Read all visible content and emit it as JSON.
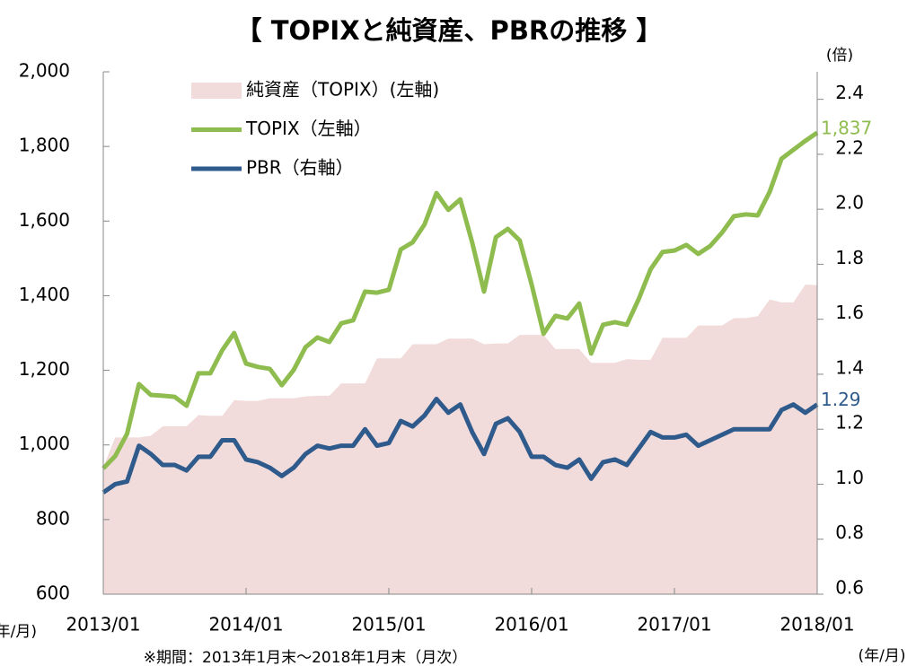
{
  "chart_data": {
    "type": "line",
    "title": "【 TOPIXと純資産、PBRの推移 】",
    "note": "※期間：2013年1月末～2018年1月末（月次）",
    "y2_unit_label": "(倍)",
    "x_unit_label_left": "(年/月)",
    "x_unit_label_right": "(年/月)",
    "categories": [
      "2013/01",
      null,
      null,
      null,
      null,
      null,
      null,
      null,
      null,
      null,
      null,
      null,
      "2014/01",
      null,
      null,
      null,
      null,
      null,
      null,
      null,
      null,
      null,
      null,
      null,
      "2015/01",
      null,
      null,
      null,
      null,
      null,
      null,
      null,
      null,
      null,
      null,
      null,
      "2016/01",
      null,
      null,
      null,
      null,
      null,
      null,
      null,
      null,
      null,
      null,
      null,
      "2017/01",
      null,
      null,
      null,
      null,
      null,
      null,
      null,
      null,
      null,
      null,
      null,
      "2018/01"
    ],
    "ylim": [
      600,
      2000
    ],
    "yticks": [
      600,
      800,
      {
        "value": 1000,
        "label": "1,000"
      },
      {
        "value": 1200,
        "label": "1,200"
      },
      {
        "value": 1400,
        "label": "1,400"
      },
      {
        "value": 1600,
        "label": "1,600"
      },
      {
        "value": 1800,
        "label": "1,800"
      },
      {
        "value": 2000,
        "label": "2,000"
      }
    ],
    "y2lim": [
      0.6,
      2.5
    ],
    "y2ticks": [
      0.6,
      0.8,
      {
        "value": 1,
        "label": "1.0"
      },
      1.2,
      1.4,
      1.6,
      1.8,
      {
        "value": 2,
        "label": "2.0"
      },
      2.2,
      2.4
    ],
    "series": [
      {
        "name": "純資産（TOPIX）(左軸)",
        "style": "area",
        "color": "#f2dcdb",
        "values": [
          940,
          1020,
          1020,
          1020,
          1025,
          1050,
          1050,
          1050,
          1080,
          1078,
          1078,
          1120,
          1118,
          1118,
          1125,
          1125,
          1125,
          1130,
          1132,
          1132,
          1165,
          1165,
          1165,
          1232,
          1232,
          1232,
          1270,
          1270,
          1270,
          1285,
          1285,
          1285,
          1270,
          1272,
          1272,
          1295,
          1295,
          1295,
          1257,
          1257,
          1257,
          1220,
          1220,
          1220,
          1230,
          1228,
          1228,
          1287,
          1287,
          1287,
          1320,
          1320,
          1320,
          1340,
          1340,
          1345,
          1390,
          1382,
          1382,
          1430,
          1428
        ]
      },
      {
        "name": "TOPIX（左軸）",
        "style": "line",
        "color": "#8fbc4f",
        "values": [
          937,
          970,
          1030,
          1163,
          1134,
          1132,
          1129,
          1105,
          1192,
          1192,
          1254,
          1300,
          1218,
          1209,
          1204,
          1160,
          1201,
          1262,
          1288,
          1276,
          1326,
          1334,
          1411,
          1408,
          1416,
          1524,
          1543,
          1591,
          1675,
          1630,
          1658,
          1543,
          1411,
          1557,
          1579,
          1548,
          1430,
          1298,
          1346,
          1339,
          1379,
          1245,
          1322,
          1329,
          1322,
          1391,
          1471,
          1517,
          1521,
          1536,
          1512,
          1533,
          1569,
          1613,
          1618,
          1615,
          1678,
          1767,
          1791,
          1815,
          1837
        ],
        "value_labels": [
          null,
          null,
          null,
          null,
          null,
          null,
          null,
          null,
          null,
          null,
          null,
          null,
          null,
          null,
          null,
          null,
          null,
          null,
          null,
          null,
          null,
          null,
          null,
          null,
          null,
          null,
          null,
          null,
          null,
          null,
          null,
          null,
          null,
          null,
          null,
          null,
          null,
          null,
          null,
          null,
          null,
          null,
          null,
          null,
          null,
          null,
          null,
          null,
          null,
          null,
          null,
          null,
          null,
          null,
          null,
          null,
          null,
          null,
          null,
          null,
          "1,837"
        ]
      },
      {
        "name": "PBR（右軸）",
        "style": "line",
        "axis": "y2",
        "color": "#2f5a8c",
        "values": [
          0.97,
          1.0,
          1.01,
          1.14,
          1.11,
          1.07,
          1.07,
          1.05,
          1.1,
          1.1,
          1.16,
          1.16,
          1.09,
          1.08,
          1.06,
          1.03,
          1.06,
          1.11,
          1.14,
          1.13,
          1.14,
          1.14,
          1.2,
          1.14,
          1.15,
          1.23,
          1.21,
          1.25,
          1.31,
          1.26,
          1.29,
          1.19,
          1.11,
          1.22,
          1.24,
          1.19,
          1.1,
          1.1,
          1.07,
          1.06,
          1.09,
          1.02,
          1.08,
          1.09,
          1.07,
          1.13,
          1.19,
          1.17,
          1.17,
          1.18,
          1.14,
          1.16,
          1.18,
          1.2,
          1.2,
          1.2,
          1.2,
          1.27,
          1.29,
          1.26,
          1.29
        ],
        "value_labels": [
          null,
          null,
          null,
          null,
          null,
          null,
          null,
          null,
          null,
          null,
          null,
          null,
          null,
          null,
          null,
          null,
          null,
          null,
          null,
          null,
          null,
          null,
          null,
          null,
          null,
          null,
          null,
          null,
          null,
          null,
          null,
          null,
          null,
          null,
          null,
          null,
          null,
          null,
          null,
          null,
          null,
          null,
          null,
          null,
          null,
          null,
          null,
          null,
          null,
          null,
          null,
          null,
          null,
          null,
          null,
          null,
          null,
          null,
          null,
          null,
          "1.29"
        ]
      }
    ]
  }
}
